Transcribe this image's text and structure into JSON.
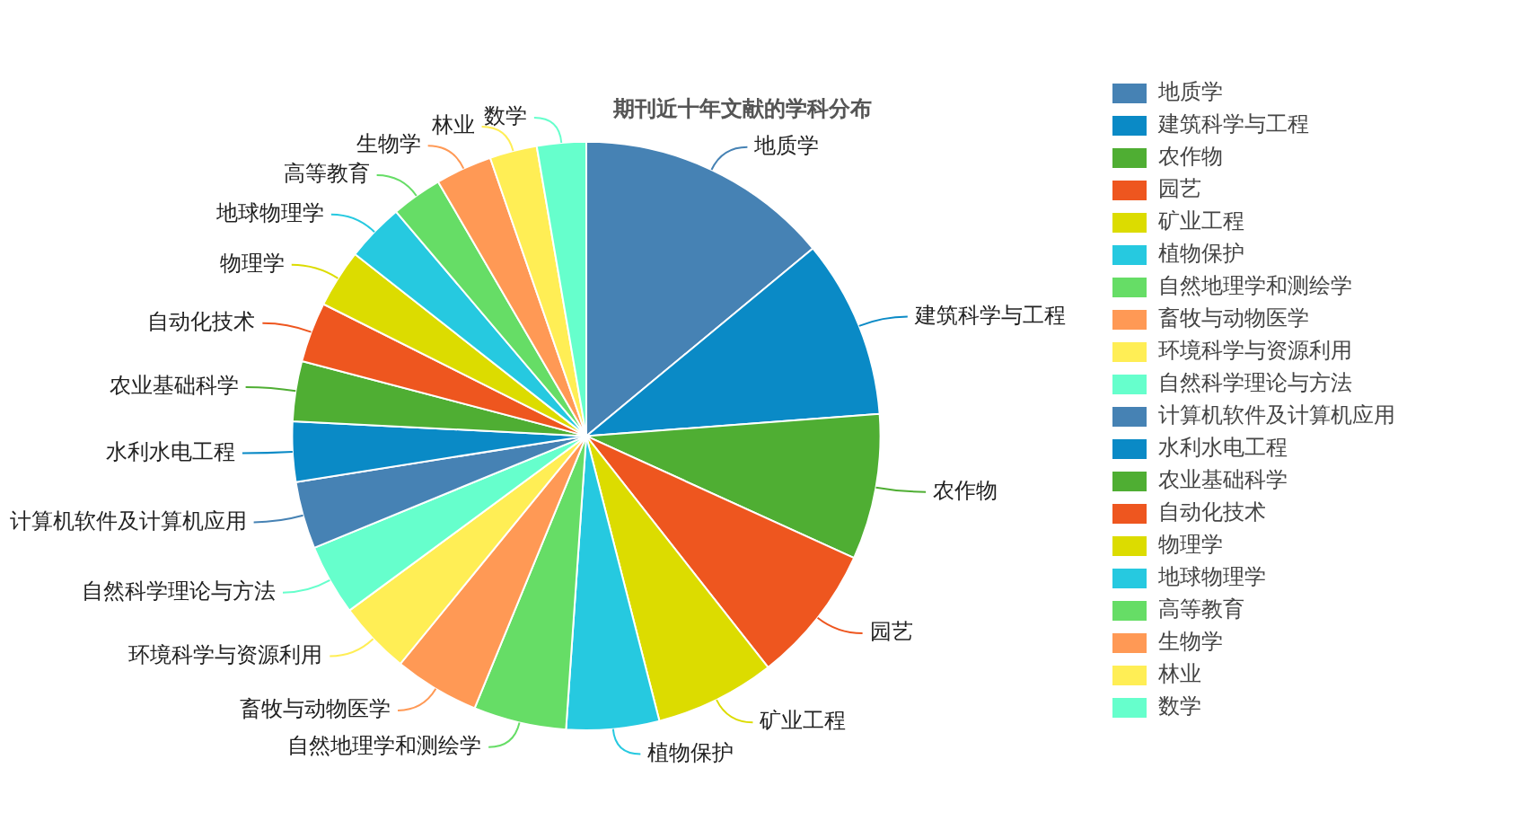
{
  "chart_data": {
    "type": "pie",
    "title": "期刊近十年文献的学科分布",
    "legend": "right",
    "categories": [
      "地质学",
      "建筑科学与工程",
      "农作物",
      "园艺",
      "矿业工程",
      "植物保护",
      "自然地理学和测绘学",
      "畜牧与动物医学",
      "环境科学与资源利用",
      "自然科学理论与方法",
      "计算机软件及计算机应用",
      "水利水电工程",
      "农业基础科学",
      "自动化技术",
      "物理学",
      "地球物理学",
      "高等教育",
      "生物学",
      "林业",
      "数学"
    ],
    "values": [
      14.0,
      9.8,
      8.0,
      7.6,
      6.6,
      5.1,
      5.1,
      4.7,
      4.0,
      3.9,
      3.7,
      3.3,
      3.3,
      3.3,
      3.2,
      3.2,
      2.8,
      3.1,
      2.6,
      2.7
    ],
    "colors": [
      "#4682b4",
      "#0a8ac6",
      "#4fae33",
      "#ee561f",
      "#dcdc00",
      "#26c9e0",
      "#66dd66",
      "#ff9955",
      "#ffee55",
      "#66ffcc",
      "#4682b4",
      "#0a8ac6",
      "#4fae33",
      "#ee561f",
      "#dcdc00",
      "#26c9e0",
      "#66dd66",
      "#ff9955",
      "#ffee55",
      "#66ffcc"
    ]
  }
}
